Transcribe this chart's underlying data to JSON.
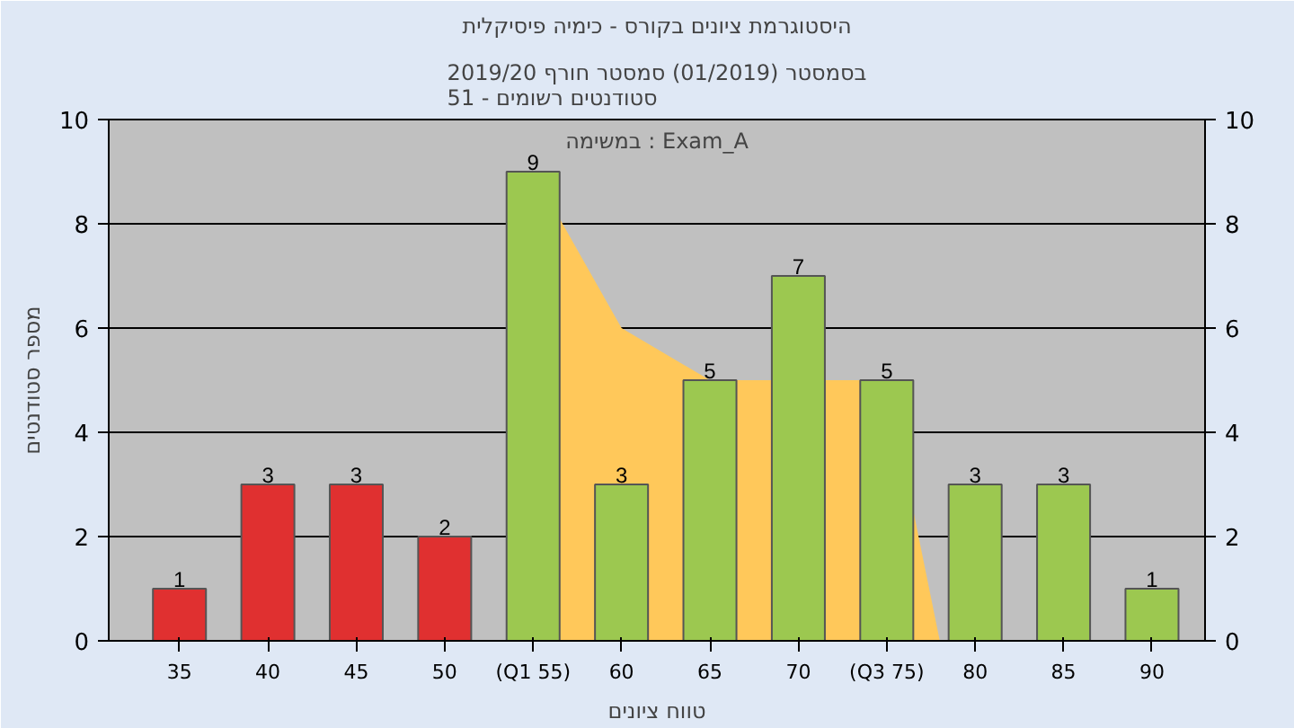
{
  "chart_data": {
    "type": "bar",
    "title": "היסטוגרמת ציונים בקורס - כימיה פיסיקלית",
    "subtitle": "בסמסטר (01/2019) סמסטר חורף 2019/20\nסטודנטים רשומים - 51",
    "xlabel": "טווח ציונים",
    "ylabel": "מספר סטודנטים",
    "annotations": [
      "במשימה : Exam_A"
    ],
    "x": [
      35,
      40,
      45,
      50,
      55,
      60,
      65,
      70,
      75,
      80,
      85,
      90
    ],
    "series": [
      {
        "type": "area",
        "color": "#ffc85a",
        "x": [
          53.5,
          55,
          60,
          65,
          75,
          78
        ],
        "values": [
          0,
          9,
          6,
          5,
          5,
          0
        ]
      },
      {
        "values": [
          1,
          3,
          3,
          2,
          9,
          3,
          5,
          7,
          5,
          3,
          3,
          1
        ],
        "value_labels": [
          "1",
          "3",
          "3",
          "2",
          "9",
          "3",
          "5",
          "7",
          "5",
          "3",
          "3",
          "1"
        ],
        "colors": [
          "#e03030",
          "#e03030",
          "#e03030",
          "#e03030",
          "#9cc850",
          "#9cc850",
          "#9cc850",
          "#9cc850",
          "#9cc850",
          "#9cc850",
          "#9cc850",
          "#9cc850"
        ]
      }
    ],
    "xlim": [
      31,
      93
    ],
    "xticks": [
      35,
      40,
      45,
      50,
      {
        "value": 55,
        "label": "(Q1 55)"
      },
      60,
      65,
      70,
      {
        "value": 75,
        "label": "(Q3 75)"
      },
      80,
      85,
      90
    ],
    "ylim": [
      0,
      10
    ],
    "yticks": [
      0,
      2,
      4,
      6,
      8,
      10
    ],
    "y2lim": [
      0,
      10
    ],
    "y2ticks": [
      0,
      2,
      4,
      6,
      8,
      10
    ],
    "grid": "y"
  }
}
